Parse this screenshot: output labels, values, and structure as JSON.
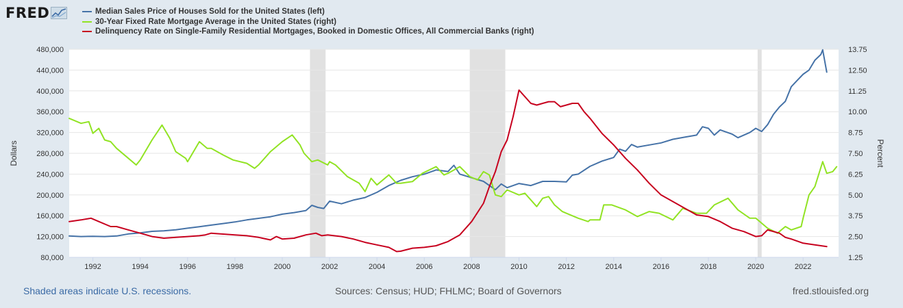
{
  "logo": {
    "text": "FRED"
  },
  "legend": [
    {
      "label": "Median Sales Price of Houses Sold for the United States (left)",
      "color": "#4572a7"
    },
    {
      "label": "30-Year Fixed Rate Mortgage Average in the United States (right)",
      "color": "#91e323"
    },
    {
      "label": "Delinquency Rate on Single-Family Residential Mortgages, Booked in Domestic Offices, All Commercial Banks (right)",
      "color": "#c7001e"
    }
  ],
  "footer": {
    "recession_note": "Shaded areas indicate U.S. recessions.",
    "sources": "Sources: Census; HUD; FHLMC; Board of Governors",
    "site": "fred.stlouisfed.org"
  },
  "chart_data": {
    "type": "line",
    "ylabel_left": "Dollars",
    "ylabel_right": "Percent",
    "xlim": [
      1991.0,
      2023.5
    ],
    "ylim_left": [
      80000,
      480000
    ],
    "ylim_right": [
      1.25,
      13.75
    ],
    "left_ticks": [
      "80,000",
      "120,000",
      "160,000",
      "200,000",
      "240,000",
      "280,000",
      "320,000",
      "360,000",
      "400,000",
      "440,000",
      "480,000"
    ],
    "right_ticks": [
      "1.25",
      "2.50",
      "3.75",
      "5.00",
      "6.25",
      "7.50",
      "8.75",
      "10.00",
      "11.25",
      "12.50",
      "13.75"
    ],
    "x_ticks": [
      "1992",
      "1994",
      "1996",
      "1998",
      "2000",
      "2002",
      "2004",
      "2006",
      "2008",
      "2010",
      "2012",
      "2014",
      "2016",
      "2018",
      "2020",
      "2022"
    ],
    "recessions": [
      [
        2001.17,
        2001.83
      ],
      [
        2007.92,
        2009.42
      ],
      [
        2020.08,
        2020.25
      ]
    ],
    "series": [
      {
        "name": "Median Sales Price of Houses Sold for the United States",
        "axis": "left",
        "color": "#4572a7",
        "points": [
          [
            1991.0,
            121000
          ],
          [
            1991.5,
            120000
          ],
          [
            1992.0,
            120500
          ],
          [
            1992.5,
            120000
          ],
          [
            1993.0,
            121000
          ],
          [
            1993.5,
            125000
          ],
          [
            1994.0,
            127000
          ],
          [
            1994.5,
            130000
          ],
          [
            1995.0,
            131000
          ],
          [
            1995.5,
            133000
          ],
          [
            1996.0,
            136000
          ],
          [
            1996.5,
            139000
          ],
          [
            1997.0,
            142000
          ],
          [
            1997.5,
            145000
          ],
          [
            1998.0,
            148000
          ],
          [
            1998.5,
            152000
          ],
          [
            1999.0,
            155000
          ],
          [
            1999.5,
            158000
          ],
          [
            2000.0,
            163000
          ],
          [
            2000.5,
            166000
          ],
          [
            2001.0,
            170000
          ],
          [
            2001.25,
            180000
          ],
          [
            2001.5,
            176000
          ],
          [
            2001.75,
            174000
          ],
          [
            2002.0,
            188000
          ],
          [
            2002.5,
            183000
          ],
          [
            2003.0,
            190000
          ],
          [
            2003.5,
            195000
          ],
          [
            2004.0,
            205000
          ],
          [
            2004.5,
            218000
          ],
          [
            2005.0,
            228000
          ],
          [
            2005.5,
            235000
          ],
          [
            2006.0,
            240000
          ],
          [
            2006.5,
            248000
          ],
          [
            2007.0,
            245000
          ],
          [
            2007.25,
            257000
          ],
          [
            2007.5,
            240000
          ],
          [
            2008.0,
            233000
          ],
          [
            2008.5,
            226000
          ],
          [
            2009.0,
            210000
          ],
          [
            2009.25,
            221000
          ],
          [
            2009.5,
            214000
          ],
          [
            2010.0,
            222000
          ],
          [
            2010.5,
            218000
          ],
          [
            2011.0,
            226000
          ],
          [
            2011.5,
            226000
          ],
          [
            2012.0,
            225000
          ],
          [
            2012.25,
            238000
          ],
          [
            2012.5,
            240000
          ],
          [
            2013.0,
            255000
          ],
          [
            2013.5,
            265000
          ],
          [
            2014.0,
            272000
          ],
          [
            2014.25,
            288000
          ],
          [
            2014.5,
            284000
          ],
          [
            2014.75,
            297000
          ],
          [
            2015.0,
            292000
          ],
          [
            2015.5,
            296000
          ],
          [
            2016.0,
            300000
          ],
          [
            2016.5,
            307000
          ],
          [
            2017.0,
            311000
          ],
          [
            2017.5,
            315000
          ],
          [
            2017.75,
            331000
          ],
          [
            2018.0,
            328000
          ],
          [
            2018.25,
            315000
          ],
          [
            2018.5,
            325000
          ],
          [
            2019.0,
            317000
          ],
          [
            2019.25,
            310000
          ],
          [
            2019.75,
            320000
          ],
          [
            2020.0,
            328000
          ],
          [
            2020.25,
            322000
          ],
          [
            2020.5,
            335000
          ],
          [
            2020.75,
            355000
          ],
          [
            2021.0,
            369000
          ],
          [
            2021.25,
            380000
          ],
          [
            2021.5,
            408000
          ],
          [
            2021.75,
            420000
          ],
          [
            2022.0,
            432000
          ],
          [
            2022.25,
            440000
          ],
          [
            2022.5,
            459000
          ],
          [
            2022.75,
            470000
          ],
          [
            2022.83,
            479000
          ],
          [
            2023.0,
            436000
          ]
        ]
      },
      {
        "name": "30-Year Fixed Rate Mortgage Average in the United States",
        "axis": "right",
        "color": "#91e323",
        "points": [
          [
            1991.0,
            9.6
          ],
          [
            1991.5,
            9.3
          ],
          [
            1991.83,
            9.4
          ],
          [
            1992.0,
            8.7
          ],
          [
            1992.25,
            9.0
          ],
          [
            1992.5,
            8.3
          ],
          [
            1992.75,
            8.2
          ],
          [
            1993.0,
            7.8
          ],
          [
            1993.5,
            7.2
          ],
          [
            1993.83,
            6.8
          ],
          [
            1994.0,
            7.1
          ],
          [
            1994.5,
            8.3
          ],
          [
            1994.92,
            9.2
          ],
          [
            1995.25,
            8.4
          ],
          [
            1995.5,
            7.6
          ],
          [
            1995.92,
            7.2
          ],
          [
            1996.0,
            7.0
          ],
          [
            1996.5,
            8.2
          ],
          [
            1996.83,
            7.8
          ],
          [
            1997.0,
            7.8
          ],
          [
            1997.5,
            7.4
          ],
          [
            1997.92,
            7.1
          ],
          [
            1998.5,
            6.9
          ],
          [
            1998.83,
            6.6
          ],
          [
            1999.0,
            6.8
          ],
          [
            1999.5,
            7.6
          ],
          [
            2000.0,
            8.2
          ],
          [
            2000.42,
            8.6
          ],
          [
            2000.75,
            8.0
          ],
          [
            2000.92,
            7.5
          ],
          [
            2001.25,
            7.0
          ],
          [
            2001.5,
            7.1
          ],
          [
            2001.92,
            6.8
          ],
          [
            2002.0,
            7.0
          ],
          [
            2002.25,
            6.8
          ],
          [
            2002.75,
            6.1
          ],
          [
            2003.0,
            5.9
          ],
          [
            2003.25,
            5.7
          ],
          [
            2003.5,
            5.2
          ],
          [
            2003.75,
            6.0
          ],
          [
            2004.0,
            5.6
          ],
          [
            2004.5,
            6.2
          ],
          [
            2004.83,
            5.7
          ],
          [
            2005.0,
            5.7
          ],
          [
            2005.5,
            5.8
          ],
          [
            2005.92,
            6.3
          ],
          [
            2006.5,
            6.7
          ],
          [
            2006.83,
            6.2
          ],
          [
            2007.0,
            6.3
          ],
          [
            2007.5,
            6.7
          ],
          [
            2007.92,
            6.1
          ],
          [
            2008.25,
            5.9
          ],
          [
            2008.5,
            6.4
          ],
          [
            2008.75,
            6.2
          ],
          [
            2009.0,
            5.0
          ],
          [
            2009.25,
            4.9
          ],
          [
            2009.5,
            5.3
          ],
          [
            2010.0,
            5.0
          ],
          [
            2010.25,
            5.1
          ],
          [
            2010.75,
            4.3
          ],
          [
            2011.0,
            4.8
          ],
          [
            2011.25,
            4.9
          ],
          [
            2011.5,
            4.4
          ],
          [
            2011.83,
            4.0
          ],
          [
            2012.0,
            3.9
          ],
          [
            2012.5,
            3.6
          ],
          [
            2012.92,
            3.4
          ],
          [
            2013.0,
            3.5
          ],
          [
            2013.42,
            3.5
          ],
          [
            2013.58,
            4.4
          ],
          [
            2013.92,
            4.4
          ],
          [
            2014.5,
            4.1
          ],
          [
            2015.0,
            3.7
          ],
          [
            2015.5,
            4.0
          ],
          [
            2015.92,
            3.9
          ],
          [
            2016.5,
            3.5
          ],
          [
            2016.92,
            4.2
          ],
          [
            2017.5,
            3.9
          ],
          [
            2017.92,
            3.9
          ],
          [
            2018.25,
            4.4
          ],
          [
            2018.83,
            4.8
          ],
          [
            2019.25,
            4.1
          ],
          [
            2019.75,
            3.6
          ],
          [
            2020.0,
            3.6
          ],
          [
            2020.5,
            3.0
          ],
          [
            2020.92,
            2.7
          ],
          [
            2021.0,
            2.8
          ],
          [
            2021.25,
            3.1
          ],
          [
            2021.5,
            2.9
          ],
          [
            2021.92,
            3.1
          ],
          [
            2022.0,
            3.6
          ],
          [
            2022.25,
            5.0
          ],
          [
            2022.5,
            5.5
          ],
          [
            2022.83,
            7.0
          ],
          [
            2023.0,
            6.3
          ],
          [
            2023.25,
            6.4
          ],
          [
            2023.42,
            6.7
          ]
        ]
      },
      {
        "name": "Delinquency Rate on Single-Family Residential Mortgages, Booked in Domestic Offices, All Commercial Banks",
        "axis": "right",
        "color": "#c7001e",
        "points": [
          [
            1991.0,
            3.4
          ],
          [
            1991.5,
            3.5
          ],
          [
            1991.92,
            3.6
          ],
          [
            1992.25,
            3.4
          ],
          [
            1992.75,
            3.1
          ],
          [
            1993.0,
            3.1
          ],
          [
            1993.5,
            2.9
          ],
          [
            1994.0,
            2.7
          ],
          [
            1994.5,
            2.5
          ],
          [
            1995.0,
            2.4
          ],
          [
            1995.5,
            2.45
          ],
          [
            1996.0,
            2.5
          ],
          [
            1996.5,
            2.55
          ],
          [
            1996.75,
            2.6
          ],
          [
            1997.0,
            2.7
          ],
          [
            1997.5,
            2.65
          ],
          [
            1998.0,
            2.6
          ],
          [
            1998.5,
            2.55
          ],
          [
            1999.0,
            2.45
          ],
          [
            1999.5,
            2.3
          ],
          [
            1999.75,
            2.5
          ],
          [
            2000.0,
            2.35
          ],
          [
            2000.5,
            2.4
          ],
          [
            2001.0,
            2.6
          ],
          [
            2001.42,
            2.7
          ],
          [
            2001.67,
            2.55
          ],
          [
            2001.92,
            2.6
          ],
          [
            2002.5,
            2.5
          ],
          [
            2003.0,
            2.35
          ],
          [
            2003.5,
            2.15
          ],
          [
            2004.0,
            2.0
          ],
          [
            2004.5,
            1.85
          ],
          [
            2004.83,
            1.6
          ],
          [
            2005.0,
            1.62
          ],
          [
            2005.5,
            1.8
          ],
          [
            2006.0,
            1.85
          ],
          [
            2006.5,
            1.95
          ],
          [
            2007.0,
            2.2
          ],
          [
            2007.5,
            2.6
          ],
          [
            2008.0,
            3.4
          ],
          [
            2008.5,
            4.5
          ],
          [
            2008.75,
            5.5
          ],
          [
            2009.0,
            6.4
          ],
          [
            2009.25,
            7.6
          ],
          [
            2009.5,
            8.3
          ],
          [
            2009.75,
            9.7
          ],
          [
            2010.0,
            11.3
          ],
          [
            2010.25,
            10.9
          ],
          [
            2010.5,
            10.5
          ],
          [
            2010.75,
            10.4
          ],
          [
            2011.0,
            10.5
          ],
          [
            2011.25,
            10.6
          ],
          [
            2011.5,
            10.6
          ],
          [
            2011.75,
            10.3
          ],
          [
            2012.0,
            10.4
          ],
          [
            2012.25,
            10.5
          ],
          [
            2012.5,
            10.5
          ],
          [
            2012.75,
            10.0
          ],
          [
            2013.0,
            9.6
          ],
          [
            2013.5,
            8.7
          ],
          [
            2014.0,
            8.0
          ],
          [
            2014.5,
            7.2
          ],
          [
            2015.0,
            6.5
          ],
          [
            2015.5,
            5.7
          ],
          [
            2016.0,
            5.0
          ],
          [
            2016.5,
            4.6
          ],
          [
            2017.0,
            4.2
          ],
          [
            2017.5,
            3.8
          ],
          [
            2018.0,
            3.7
          ],
          [
            2018.5,
            3.4
          ],
          [
            2019.0,
            3.0
          ],
          [
            2019.5,
            2.8
          ],
          [
            2020.0,
            2.5
          ],
          [
            2020.25,
            2.55
          ],
          [
            2020.5,
            2.9
          ],
          [
            2021.0,
            2.7
          ],
          [
            2021.25,
            2.45
          ],
          [
            2021.5,
            2.35
          ],
          [
            2022.0,
            2.1
          ],
          [
            2022.5,
            2.0
          ],
          [
            2023.0,
            1.9
          ]
        ]
      }
    ]
  }
}
